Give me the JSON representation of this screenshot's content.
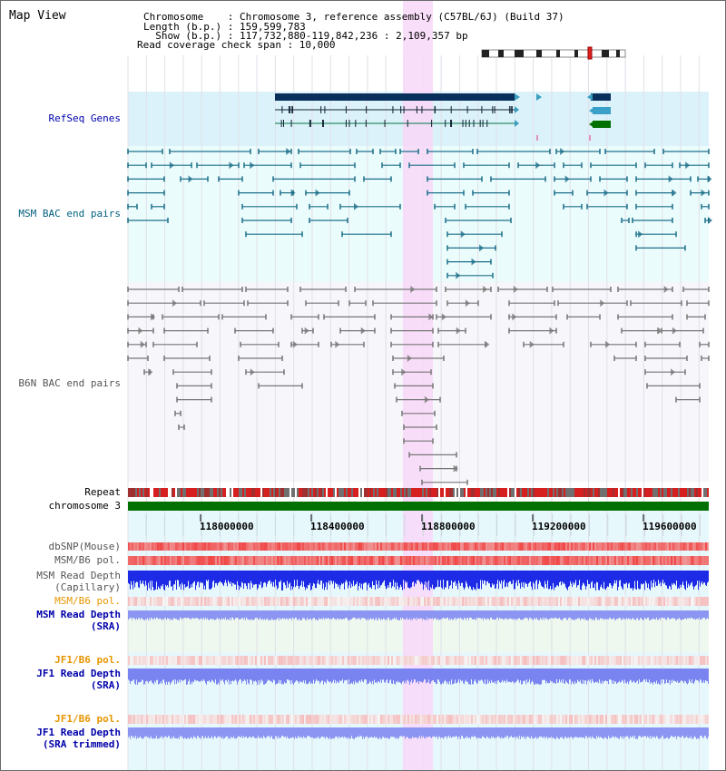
{
  "header": {
    "title": "Map View",
    "info_lines": [
      "Chromosome    : Chromosome 3, reference assembly (C57BL/6J) (Build 37)",
      "Length (b.p.) : 159,599,783",
      "  Show (b.p.) : 117,732,880-119,842,236 : 2,109,357 bp",
      "Read coverage check span : 10,000"
    ]
  },
  "colors": {
    "refseq_bg": "#dcf2fa",
    "msm_bg": "#ebfcfc",
    "msm_line": "#1d6f8a",
    "b6n_line": "#777777",
    "highlight": "#f8d8f8",
    "chromosome": "#007000",
    "label_blue": "#0000aa",
    "label_teal": "#005f80",
    "label_gray": "#555555",
    "label_orange": "#e69500"
  },
  "tracks": {
    "refseq": "RefSeq Genes",
    "msm_bac": "MSM BAC end pairs",
    "b6n_bac": "B6N BAC end pairs",
    "repeat": "Repeat",
    "chromosome": "chromosome 3"
  },
  "axis": {
    "ticks": [
      "118000000",
      "118400000",
      "118800000",
      "119200000",
      "119600000"
    ]
  },
  "data_tracks": {
    "dbsnp": "dbSNP(Mouse)",
    "msm_b6_pol_1": "MSM/B6 pol.",
    "msm_read_depth_cap_1": "MSM Read Depth",
    "msm_read_depth_cap_2": "(Capillary)",
    "msm_b6_pol_2": "MSM/B6 pol.",
    "msm_read_depth_sra_1": "MSM Read Depth",
    "msm_read_depth_sra_2": "(SRA)",
    "jf1_b6_pol_1": "JF1/B6 pol.",
    "jf1_read_depth_sra_1": "JF1 Read Depth",
    "jf1_read_depth_sra_2": "(SRA)",
    "jf1_b6_pol_2": "JF1/B6 pol.",
    "jf1_read_depth_trim_1": "JF1 Read Depth",
    "jf1_read_depth_trim_2": "(SRA trimmed)"
  }
}
